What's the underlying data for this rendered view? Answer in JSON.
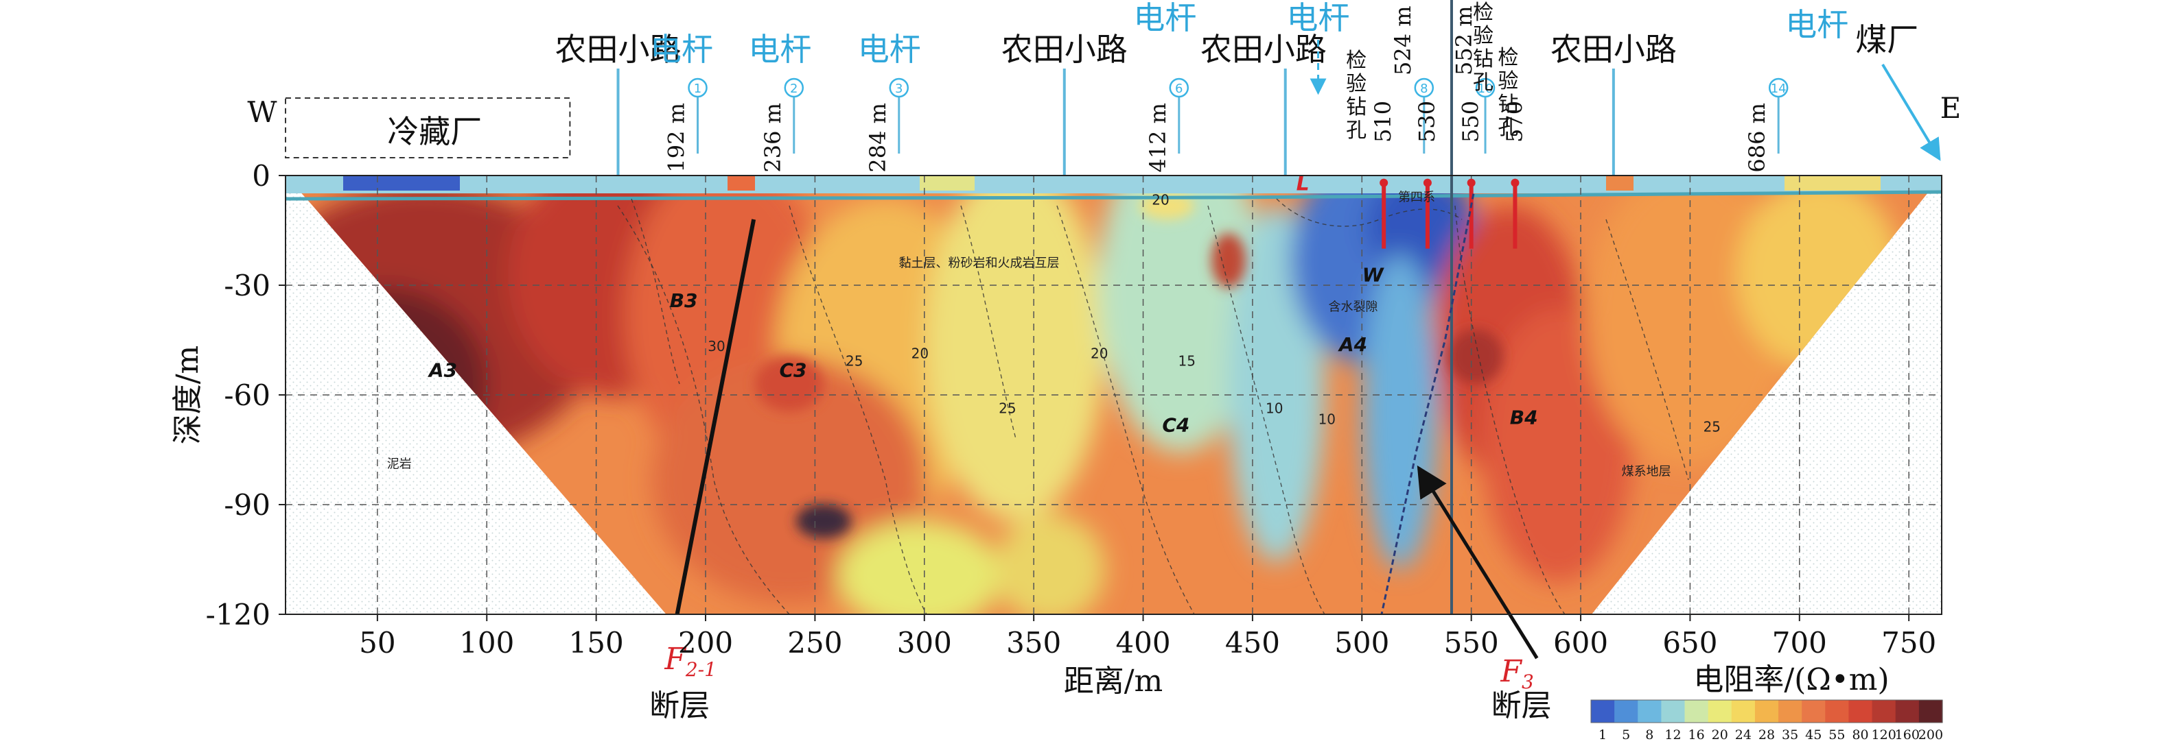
{
  "chart_data": {
    "type": "heatmap",
    "title": "",
    "xlabel": "距离/m",
    "ylabel": "深度/m",
    "xlim": [
      8,
      765
    ],
    "ylim": [
      -120,
      0
    ],
    "x_ticks": [
      50,
      100,
      150,
      200,
      250,
      300,
      350,
      400,
      450,
      500,
      550,
      600,
      650,
      700,
      750
    ],
    "y_ticks": [
      0,
      -30,
      -60,
      -90,
      -120
    ],
    "grid": "dashed",
    "direction_labels": {
      "west": "W",
      "east": "E"
    },
    "colorbar": {
      "title": "电阻率/(Ω•m)",
      "ticks": [
        "1",
        "5",
        "8",
        "12",
        "16",
        "20",
        "24",
        "28",
        "35",
        "45",
        "55",
        "80",
        "120",
        "160",
        "200"
      ],
      "colors": [
        "#3a5fc8",
        "#4f8fd8",
        "#6db8e0",
        "#9ad4d8",
        "#cfe8a8",
        "#eaea7a",
        "#f4d860",
        "#f3b54c",
        "#ee9448",
        "#e87848",
        "#e05e3c",
        "#d34634",
        "#b53a30",
        "#8e2c2c",
        "#5e2226"
      ]
    },
    "zones": [
      {
        "label": "A3",
        "x": 80,
        "depth": -55
      },
      {
        "label": "B3",
        "x": 190,
        "depth": -36
      },
      {
        "label": "C3",
        "x": 240,
        "depth": -55
      },
      {
        "label": "C4",
        "x": 415,
        "depth": -70
      },
      {
        "label": "A4",
        "x": 496,
        "depth": -48
      },
      {
        "label": "W",
        "x": 505,
        "depth": -29
      },
      {
        "label": "B4",
        "x": 574,
        "depth": -68
      },
      {
        "label": "L",
        "x": 473,
        "depth": -4
      }
    ],
    "contour_labels": [
      {
        "text": "20",
        "x": 298,
        "depth": -50
      },
      {
        "text": "25",
        "x": 338,
        "depth": -65
      },
      {
        "text": "20",
        "x": 380,
        "depth": -50
      },
      {
        "text": "15",
        "x": 420,
        "depth": -52
      },
      {
        "text": "10",
        "x": 460,
        "depth": -65
      },
      {
        "text": "10",
        "x": 484,
        "depth": -68
      },
      {
        "text": "25",
        "x": 660,
        "depth": -70
      },
      {
        "text": "30",
        "x": 205,
        "depth": -48
      },
      {
        "text": "20",
        "x": 408,
        "depth": -8
      },
      {
        "text": "25",
        "x": 268,
        "depth": -52
      }
    ],
    "faults": [
      {
        "name_main": "F",
        "name_sub": "2-1",
        "caption": "断层",
        "top": [
          222,
          -12
        ],
        "bottom": [
          187,
          -120
        ]
      },
      {
        "name_main": "F",
        "name_sub": "3",
        "caption": "断层",
        "top": [
          551,
          -5
        ],
        "bottom": [
          509,
          -120
        ]
      }
    ],
    "boreholes": [
      {
        "x": 510,
        "depth_bottom": -20,
        "label": "510"
      },
      {
        "x": 530,
        "depth_bottom": -20,
        "label": "530"
      },
      {
        "x": 550,
        "depth_bottom": -20,
        "label": "550"
      },
      {
        "x": 570,
        "depth_bottom": -20,
        "label": "570"
      }
    ],
    "borehole_text": "检验钻孔",
    "poles": [
      {
        "x": 192,
        "num": "1",
        "dist": "192 m"
      },
      {
        "x": 236,
        "num": "2",
        "dist": "236 m"
      },
      {
        "x": 284,
        "num": "3",
        "dist": "284 m"
      },
      {
        "x": 412,
        "num": "6",
        "dist": "412 m"
      },
      {
        "x": 524,
        "num": "8",
        "dist": "524 m"
      },
      {
        "x": 552,
        "num": "10",
        "dist": "552 m"
      },
      {
        "x": 686,
        "num": "14",
        "dist": "686 m"
      }
    ],
    "surface_labels": [
      {
        "text": "农田小路",
        "x": 160,
        "type": "road"
      },
      {
        "text": "电杆",
        "x": 189,
        "type": "pole"
      },
      {
        "text": "电杆",
        "x": 234,
        "type": "pole"
      },
      {
        "text": "电杆",
        "x": 284,
        "type": "pole"
      },
      {
        "text": "农田小路",
        "x": 364,
        "type": "road"
      },
      {
        "text": "电杆",
        "x": 410,
        "type": "pole"
      },
      {
        "text": "农田小路",
        "x": 455,
        "type": "road"
      },
      {
        "text": "电杆",
        "x": 480,
        "type": "pole"
      },
      {
        "text": "农田小路",
        "x": 615,
        "type": "road"
      },
      {
        "text": "电杆",
        "x": 708,
        "type": "pole"
      },
      {
        "text": "煤厂",
        "x": 740,
        "type": "road"
      }
    ],
    "facility_box": {
      "text": "冷藏厂",
      "x_start": 8,
      "x_end": 138
    },
    "strata_labels": [
      {
        "text": "黏土层、粉砂岩和火成岩互层",
        "x": 325,
        "depth": -25
      },
      {
        "text": "含水裂隙",
        "x": 496,
        "depth": -37
      },
      {
        "text": "煤系地层",
        "x": 630,
        "depth": -82
      },
      {
        "text": "第四系",
        "x": 525,
        "depth": -7
      },
      {
        "text": "泥岩",
        "x": 60,
        "depth": -80
      }
    ]
  }
}
